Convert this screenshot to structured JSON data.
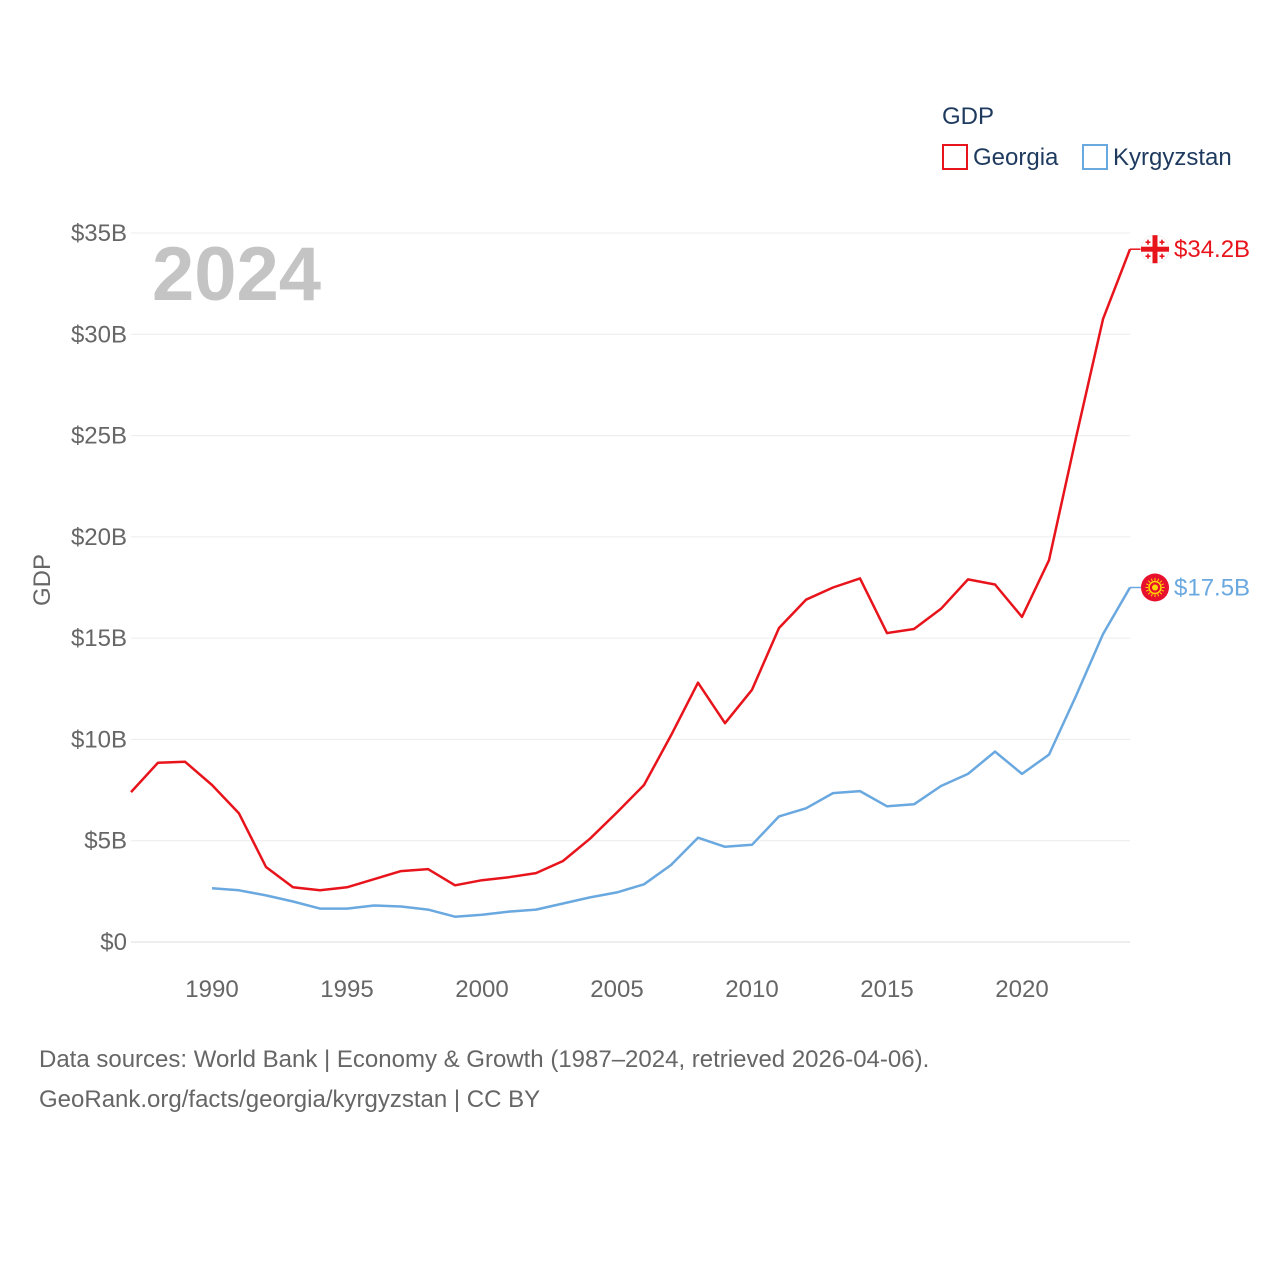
{
  "chart_data": {
    "type": "line",
    "title": "GDP",
    "ylabel": "GDP",
    "xlabel": "",
    "year_label": "2024",
    "xlim": [
      1987,
      2024
    ],
    "ylim": [
      0,
      35
    ],
    "x_ticks": [
      1990,
      1995,
      2000,
      2005,
      2010,
      2015,
      2020
    ],
    "y_ticks": [
      {
        "value": 0,
        "label": "$0"
      },
      {
        "value": 5,
        "label": "$5B"
      },
      {
        "value": 10,
        "label": "$10B"
      },
      {
        "value": 15,
        "label": "$15B"
      },
      {
        "value": 20,
        "label": "$20B"
      },
      {
        "value": 25,
        "label": "$25B"
      },
      {
        "value": 30,
        "label": "$30B"
      },
      {
        "value": 35,
        "label": "$35B"
      }
    ],
    "legend_title": "GDP",
    "legend_position": "top-right",
    "series": [
      {
        "name": "Georgia",
        "color": "#e8141c",
        "end_label": "$34.2B",
        "flag_icon": "georgia-flag-icon",
        "x": [
          1987,
          1988,
          1989,
          1990,
          1991,
          1992,
          1993,
          1994,
          1995,
          1996,
          1997,
          1998,
          1999,
          2000,
          2001,
          2002,
          2003,
          2004,
          2005,
          2006,
          2007,
          2008,
          2009,
          2010,
          2011,
          2012,
          2013,
          2014,
          2015,
          2016,
          2017,
          2018,
          2019,
          2020,
          2021,
          2022,
          2023,
          2024
        ],
        "values": [
          7.4,
          8.85,
          8.9,
          7.75,
          6.35,
          3.7,
          2.7,
          2.55,
          2.7,
          3.1,
          3.5,
          3.6,
          2.8,
          3.05,
          3.2,
          3.4,
          4.0,
          5.1,
          6.4,
          7.75,
          10.2,
          12.8,
          10.8,
          12.45,
          15.5,
          16.9,
          17.5,
          17.95,
          15.25,
          15.45,
          16.45,
          17.9,
          17.65,
          16.05,
          18.85,
          24.9,
          30.75,
          34.2
        ]
      },
      {
        "name": "Kyrgyzstan",
        "color": "#6aa8e0",
        "end_label": "$17.5B",
        "flag_icon": "kyrgyzstan-flag-icon",
        "x": [
          1990,
          1991,
          1992,
          1993,
          1994,
          1995,
          1996,
          1997,
          1998,
          1999,
          2000,
          2001,
          2002,
          2003,
          2004,
          2005,
          2006,
          2007,
          2008,
          2009,
          2010,
          2011,
          2012,
          2013,
          2014,
          2015,
          2016,
          2017,
          2018,
          2019,
          2020,
          2021,
          2022,
          2023,
          2024
        ],
        "values": [
          2.65,
          2.55,
          2.3,
          2.0,
          1.65,
          1.65,
          1.8,
          1.75,
          1.6,
          1.25,
          1.35,
          1.5,
          1.6,
          1.9,
          2.2,
          2.45,
          2.85,
          3.8,
          5.15,
          4.7,
          4.8,
          6.2,
          6.6,
          7.35,
          7.45,
          6.7,
          6.8,
          7.7,
          8.3,
          9.4,
          8.3,
          9.25,
          12.15,
          15.2,
          17.5
        ]
      }
    ]
  },
  "footer": {
    "source_line": "Data sources: World Bank | Economy & Growth (1987–2024, retrieved 2026-04-06).",
    "url_line": "GeoRank.org/facts/georgia/kyrgyzstan | CC BY"
  }
}
